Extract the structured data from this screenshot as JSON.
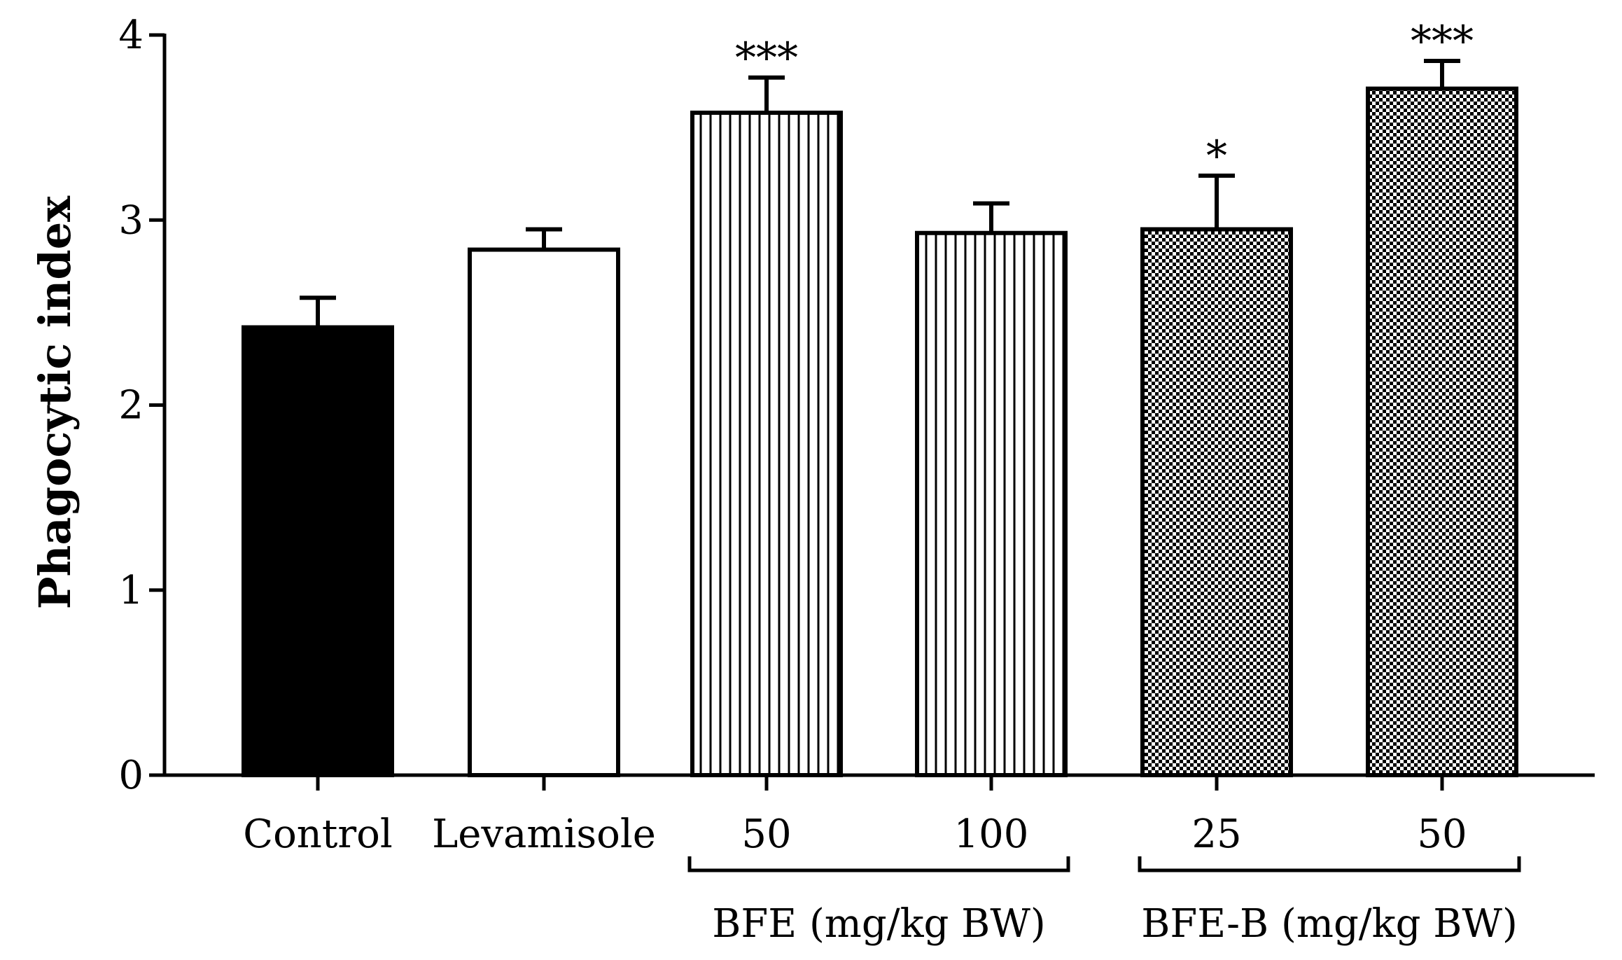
{
  "chart_data": {
    "type": "bar",
    "title": "",
    "xlabel": "",
    "ylabel": "Phagocytic index",
    "ylim": [
      0,
      4
    ],
    "yticks": [
      "0",
      "1",
      "2",
      "3",
      "4"
    ],
    "grid": false,
    "categories": [
      "Control",
      "Levamisole",
      "50",
      "100",
      "25",
      "50"
    ],
    "values": [
      2.42,
      2.84,
      3.58,
      2.93,
      2.95,
      3.71
    ],
    "errors": [
      0.16,
      0.11,
      0.19,
      0.16,
      0.29,
      0.15
    ],
    "significance": [
      "",
      "",
      "***",
      "",
      "*",
      "***"
    ],
    "fills": [
      "solid",
      "empty",
      "vertical-stripes",
      "vertical-stripes",
      "checker",
      "checker"
    ],
    "groups": [
      {
        "label": "BFE (mg/kg BW)",
        "from": 2,
        "to": 3
      },
      {
        "label": "BFE-B (mg/kg BW)",
        "from": 4,
        "to": 5
      }
    ],
    "colors": {
      "bar_stroke": "#000000",
      "solid_fill": "#000000",
      "empty_fill": "#ffffff"
    }
  }
}
